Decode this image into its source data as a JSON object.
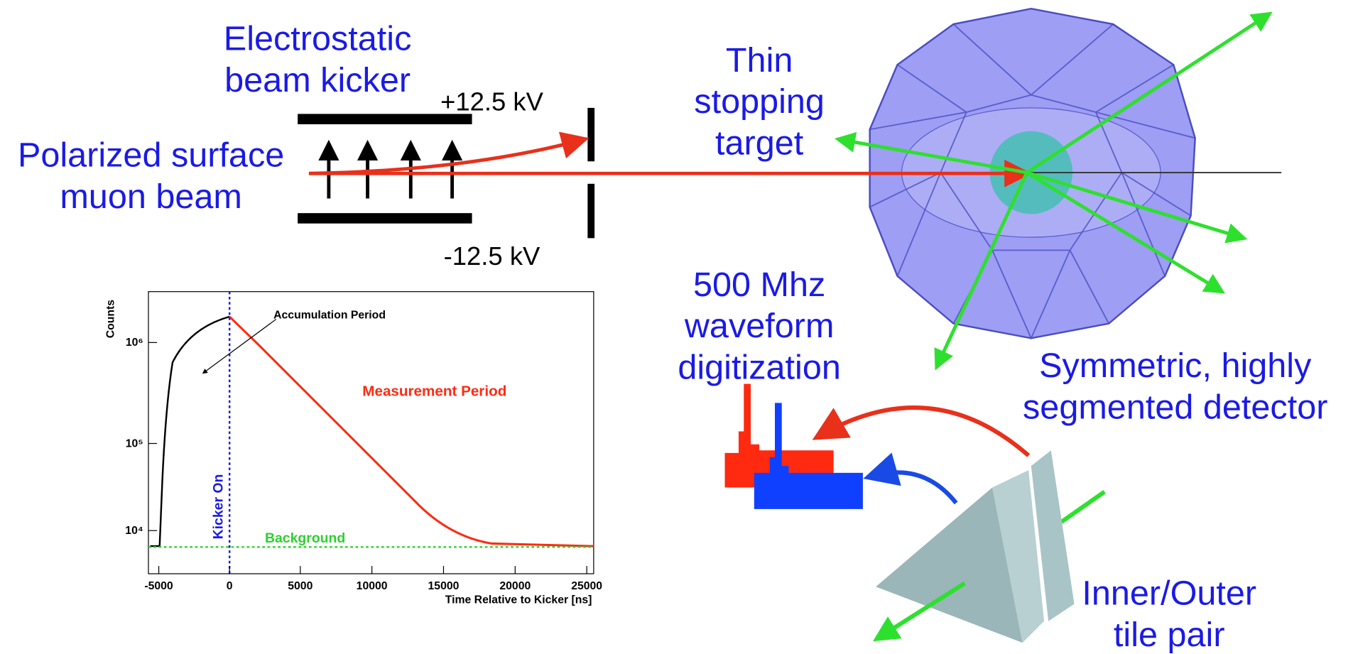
{
  "kicker": {
    "title_lines": [
      "Electrostatic",
      "beam kicker"
    ],
    "plus_voltage": "+12.5 kV",
    "minus_voltage": "-12.5 kV"
  },
  "beam": {
    "lines": [
      "Polarized surface",
      "muon beam"
    ]
  },
  "target": {
    "lines": [
      "Thin",
      "stopping",
      "target"
    ]
  },
  "digitization": {
    "lines": [
      "500 Mhz",
      "waveform",
      "digitization"
    ]
  },
  "detector": {
    "lines": [
      "Symmetric, highly",
      "segmented detector"
    ]
  },
  "tiles": {
    "lines": [
      "Inner/Outer",
      "tile pair"
    ]
  },
  "plot": {
    "y_axis_label": "Counts",
    "x_axis_label": "Time Relative to Kicker [ns]",
    "xticks": [
      "-5000",
      "0",
      "5000",
      "10000",
      "15000",
      "20000",
      "25000"
    ],
    "yticks": [
      "10⁴",
      "10⁵",
      "10⁶"
    ],
    "annotations": {
      "accumulation": "Accumulation Period",
      "measurement": "Measurement Period",
      "kicker_on": "Kicker On",
      "background": "Background"
    }
  }
}
